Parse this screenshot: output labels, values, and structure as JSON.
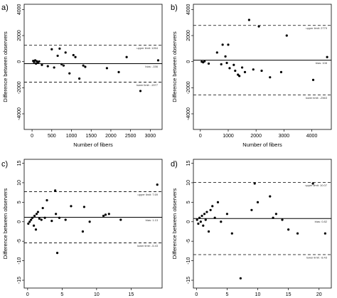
{
  "panels": [
    {
      "label": "a)",
      "ylabel": "Difference between observers",
      "xlabel": "Number of fibers",
      "xlim": [
        -200,
        3300
      ],
      "ylim": [
        -5200,
        4400
      ],
      "xticks": [
        0,
        500,
        1000,
        1500,
        2000,
        2500,
        3000
      ],
      "xtick_labels": [
        "0",
        "500",
        "1000",
        "1500",
        "2000",
        "2500",
        "3000"
      ],
      "yticks": [
        -4000,
        -2000,
        0,
        2000,
        4000
      ],
      "ytick_labels": [
        "-4000",
        "-2000",
        "0",
        "2000",
        "4000"
      ],
      "lines": [
        {
          "kind": "dashed",
          "y": 1264,
          "label": "upper limit: 1264"
        },
        {
          "kind": "solid",
          "y": -156,
          "label": "bias: -156"
        },
        {
          "kind": "dashed",
          "y": -1577,
          "label": "lower limit: -1577"
        }
      ],
      "points": [
        {
          "x": 30,
          "y": 60
        },
        {
          "x": 50,
          "y": -30
        },
        {
          "x": 80,
          "y": 100
        },
        {
          "x": 100,
          "y": -150
        },
        {
          "x": 120,
          "y": 30
        },
        {
          "x": 150,
          "y": -50
        },
        {
          "x": 180,
          "y": 10
        },
        {
          "x": 250,
          "y": -250
        },
        {
          "x": 400,
          "y": -350
        },
        {
          "x": 500,
          "y": 950
        },
        {
          "x": 560,
          "y": -450
        },
        {
          "x": 650,
          "y": 450
        },
        {
          "x": 700,
          "y": 1000
        },
        {
          "x": 750,
          "y": -200
        },
        {
          "x": 800,
          "y": -300
        },
        {
          "x": 850,
          "y": 700
        },
        {
          "x": 950,
          "y": -900
        },
        {
          "x": 1050,
          "y": 500
        },
        {
          "x": 1100,
          "y": 350
        },
        {
          "x": 1200,
          "y": -1300
        },
        {
          "x": 1300,
          "y": -300
        },
        {
          "x": 1350,
          "y": -400
        },
        {
          "x": 1900,
          "y": -500
        },
        {
          "x": 2200,
          "y": -800
        },
        {
          "x": 2400,
          "y": 350
        },
        {
          "x": 2750,
          "y": -2250
        },
        {
          "x": 3200,
          "y": 100
        }
      ]
    },
    {
      "label": "b)",
      "ylabel": "Difference between observers",
      "xlabel": "Number of fibers",
      "xlim": [
        -250,
        4700
      ],
      "ylim": [
        -5200,
        4400
      ],
      "xticks": [
        0,
        1000,
        2000,
        3000,
        4000
      ],
      "xtick_labels": [
        "0",
        "1000",
        "2000",
        "3000",
        "4000"
      ],
      "yticks": [
        -4000,
        -2000,
        0,
        2000,
        4000
      ],
      "ytick_labels": [
        "-4000",
        "-2000",
        "0",
        "2000",
        "4000"
      ],
      "lines": [
        {
          "kind": "dashed",
          "y": 2779,
          "label": "upper limit: 2779"
        },
        {
          "kind": "solid",
          "y": 108,
          "label": "bias: 108"
        },
        {
          "kind": "dashed",
          "y": -2563,
          "label": "lower limit: -2563"
        }
      ],
      "points": [
        {
          "x": 50,
          "y": 0
        },
        {
          "x": 100,
          "y": -50
        },
        {
          "x": 150,
          "y": 30
        },
        {
          "x": 300,
          "y": -150
        },
        {
          "x": 600,
          "y": 700
        },
        {
          "x": 750,
          "y": -200
        },
        {
          "x": 800,
          "y": 1300
        },
        {
          "x": 900,
          "y": 400
        },
        {
          "x": 950,
          "y": -100
        },
        {
          "x": 1000,
          "y": 1300
        },
        {
          "x": 1050,
          "y": -500
        },
        {
          "x": 1200,
          "y": -250
        },
        {
          "x": 1250,
          "y": -700
        },
        {
          "x": 1350,
          "y": -1000
        },
        {
          "x": 1400,
          "y": -1100
        },
        {
          "x": 1500,
          "y": -450
        },
        {
          "x": 1600,
          "y": -800
        },
        {
          "x": 1750,
          "y": 3200
        },
        {
          "x": 1900,
          "y": -600
        },
        {
          "x": 2100,
          "y": 2700
        },
        {
          "x": 2200,
          "y": -700
        },
        {
          "x": 2500,
          "y": -1200
        },
        {
          "x": 2900,
          "y": -800
        },
        {
          "x": 3100,
          "y": 2000
        },
        {
          "x": 4050,
          "y": -1400
        },
        {
          "x": 4550,
          "y": 350
        }
      ]
    },
    {
      "label": "c)",
      "ylabel": "Difference between observers",
      "xlabel": "Distance to tumor",
      "xlim": [
        -0.5,
        19.5
      ],
      "ylim": [
        -17,
        16
      ],
      "xticks": [
        0,
        5,
        10,
        15
      ],
      "xtick_labels": [
        "0",
        "5",
        "10",
        "15"
      ],
      "yticks": [
        -15,
        -10,
        -5,
        0,
        5,
        10,
        15
      ],
      "ytick_labels": [
        "-15",
        "-10",
        "-5",
        "0",
        "5",
        "10",
        "15"
      ],
      "lines": [
        {
          "kind": "dashed",
          "y": 7.69,
          "label": "upper limit: 7.69"
        },
        {
          "kind": "solid",
          "y": 1.13,
          "label": "bias: 1.13"
        },
        {
          "kind": "dashed",
          "y": -5.43,
          "label": "lower limit: -5.43"
        }
      ],
      "points": [
        {
          "x": 0.1,
          "y": -0.5
        },
        {
          "x": 0.3,
          "y": 0
        },
        {
          "x": 0.5,
          "y": 0.5
        },
        {
          "x": 0.7,
          "y": 1
        },
        {
          "x": 0.9,
          "y": -1
        },
        {
          "x": 1.0,
          "y": 1.5
        },
        {
          "x": 1.2,
          "y": -2
        },
        {
          "x": 1.3,
          "y": 2
        },
        {
          "x": 1.5,
          "y": 2.5
        },
        {
          "x": 1.7,
          "y": 0.8
        },
        {
          "x": 2.0,
          "y": 0.5
        },
        {
          "x": 2.2,
          "y": 3.5
        },
        {
          "x": 2.5,
          "y": 1
        },
        {
          "x": 2.8,
          "y": 5.5
        },
        {
          "x": 3.5,
          "y": 0.2
        },
        {
          "x": 4.0,
          "y": 8
        },
        {
          "x": 4.1,
          "y": 2
        },
        {
          "x": 4.3,
          "y": -8
        },
        {
          "x": 4.6,
          "y": 1
        },
        {
          "x": 5.5,
          "y": 0.5
        },
        {
          "x": 6.3,
          "y": 4
        },
        {
          "x": 8.0,
          "y": -2.5
        },
        {
          "x": 8.2,
          "y": 3.8
        },
        {
          "x": 9.0,
          "y": 0
        },
        {
          "x": 11.0,
          "y": 1.5
        },
        {
          "x": 11.3,
          "y": 1.8
        },
        {
          "x": 11.8,
          "y": 2
        },
        {
          "x": 13.5,
          "y": 0.5
        },
        {
          "x": 18.8,
          "y": 9.5
        }
      ]
    },
    {
      "label": "d)",
      "ylabel": "Difference between observers",
      "xlabel": "Distance to tumor",
      "xlim": [
        -0.5,
        22
      ],
      "ylim": [
        -17,
        16
      ],
      "xticks": [
        0,
        5,
        10,
        15,
        20
      ],
      "xtick_labels": [
        "0",
        "5",
        "10",
        "15",
        "20"
      ],
      "yticks": [
        -15,
        -10,
        -5,
        0,
        5,
        10,
        15
      ],
      "ytick_labels": [
        "-15",
        "-10",
        "-5",
        "0",
        "5",
        "10",
        "15"
      ],
      "lines": [
        {
          "kind": "dashed",
          "y": 10.07,
          "label": "upper limit: 10.07"
        },
        {
          "kind": "solid",
          "y": 0.82,
          "label": "bias: 0.82"
        },
        {
          "kind": "dashed",
          "y": -8.43,
          "label": "lower limit: -8.43"
        }
      ],
      "points": [
        {
          "x": 0.1,
          "y": 0.5
        },
        {
          "x": 0.3,
          "y": -0.5
        },
        {
          "x": 0.5,
          "y": 1
        },
        {
          "x": 0.7,
          "y": 0
        },
        {
          "x": 0.9,
          "y": 1.5
        },
        {
          "x": 1.1,
          "y": -1
        },
        {
          "x": 1.3,
          "y": 2
        },
        {
          "x": 1.5,
          "y": 0.5
        },
        {
          "x": 1.7,
          "y": 2.5
        },
        {
          "x": 2.0,
          "y": -2.5
        },
        {
          "x": 2.3,
          "y": 3
        },
        {
          "x": 2.6,
          "y": 4
        },
        {
          "x": 3.0,
          "y": 1
        },
        {
          "x": 3.5,
          "y": 5
        },
        {
          "x": 4.0,
          "y": 0
        },
        {
          "x": 5.0,
          "y": 2
        },
        {
          "x": 5.8,
          "y": -3
        },
        {
          "x": 7.2,
          "y": -14.5
        },
        {
          "x": 9.0,
          "y": 3
        },
        {
          "x": 9.5,
          "y": 9.8
        },
        {
          "x": 10.0,
          "y": 5
        },
        {
          "x": 12.0,
          "y": 6.5
        },
        {
          "x": 12.5,
          "y": 1
        },
        {
          "x": 13.0,
          "y": 2
        },
        {
          "x": 14.0,
          "y": 0.5
        },
        {
          "x": 15.0,
          "y": -2
        },
        {
          "x": 16.5,
          "y": -3
        },
        {
          "x": 19.0,
          "y": 9.8
        },
        {
          "x": 21.0,
          "y": -3
        }
      ]
    }
  ]
}
